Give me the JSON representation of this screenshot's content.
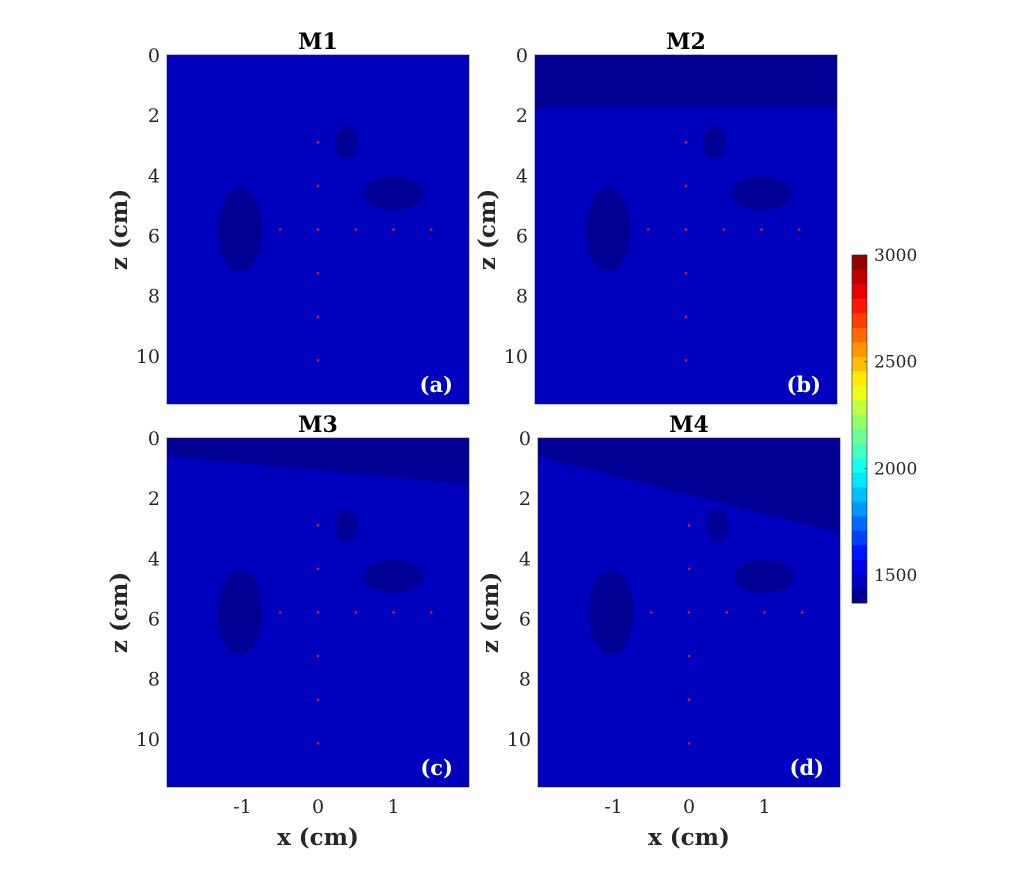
{
  "chart_data": [
    {
      "type": "heatmap",
      "title": "M1",
      "panel_label": "(a)",
      "xlabel": "",
      "ylabel": "z (cm)",
      "xlim": [
        -2,
        2
      ],
      "ylim": [
        0,
        11.6
      ],
      "y_reversed": true,
      "x_ticks": [
        -1,
        0,
        1
      ],
      "y_ticks": [
        0,
        2,
        4,
        6,
        8,
        10
      ],
      "show_x_ticks": false,
      "background_value": 1450,
      "top_layer": null,
      "inclusions": [
        {
          "shape": "ellipse",
          "cx": 0.38,
          "cz": 2.9,
          "rx": 0.15,
          "rz": 0.55,
          "value": 1420
        },
        {
          "shape": "ellipse",
          "cx": 1.0,
          "cz": 4.6,
          "rx": 0.4,
          "rz": 0.55,
          "value": 1420
        },
        {
          "shape": "ellipse",
          "cx": -1.03,
          "cz": 5.8,
          "rx": 0.3,
          "rz": 1.4,
          "value": 1420
        }
      ],
      "point_targets": [
        [
          0,
          2.9
        ],
        [
          0,
          4.35
        ],
        [
          -0.5,
          5.8
        ],
        [
          0,
          5.8
        ],
        [
          0.5,
          5.8
        ],
        [
          1.0,
          5.8
        ],
        [
          1.5,
          5.8
        ],
        [
          0,
          7.25
        ],
        [
          0,
          8.7
        ],
        [
          0,
          10.15
        ]
      ]
    },
    {
      "type": "heatmap",
      "title": "M2",
      "panel_label": "(b)",
      "xlabel": "",
      "ylabel": "z (cm)",
      "xlim": [
        -2,
        2
      ],
      "ylim": [
        0,
        11.6
      ],
      "y_reversed": true,
      "x_ticks": [
        -1,
        0,
        1
      ],
      "y_ticks": [
        0,
        2,
        4,
        6,
        8,
        10
      ],
      "show_x_ticks": false,
      "background_value": 1450,
      "top_layer": {
        "z_left": 1.75,
        "z_right": 1.75,
        "value": 1380
      },
      "inclusions": [
        {
          "shape": "ellipse",
          "cx": 0.38,
          "cz": 2.9,
          "rx": 0.15,
          "rz": 0.55,
          "value": 1420
        },
        {
          "shape": "ellipse",
          "cx": 1.0,
          "cz": 4.6,
          "rx": 0.4,
          "rz": 0.55,
          "value": 1420
        },
        {
          "shape": "ellipse",
          "cx": -1.03,
          "cz": 5.8,
          "rx": 0.3,
          "rz": 1.4,
          "value": 1420
        }
      ],
      "point_targets": [
        [
          0,
          2.9
        ],
        [
          0,
          4.35
        ],
        [
          -0.5,
          5.8
        ],
        [
          0,
          5.8
        ],
        [
          0.5,
          5.8
        ],
        [
          1.0,
          5.8
        ],
        [
          1.5,
          5.8
        ],
        [
          0,
          7.25
        ],
        [
          0,
          8.7
        ],
        [
          0,
          10.15
        ]
      ]
    },
    {
      "type": "heatmap",
      "title": "M3",
      "panel_label": "(c)",
      "xlabel": "x (cm)",
      "ylabel": "z (cm)",
      "xlim": [
        -2,
        2
      ],
      "ylim": [
        0,
        11.6
      ],
      "y_reversed": true,
      "x_ticks": [
        -1,
        0,
        1
      ],
      "y_ticks": [
        0,
        2,
        4,
        6,
        8,
        10
      ],
      "show_x_ticks": true,
      "background_value": 1450,
      "top_layer": {
        "z_left": 0.6,
        "z_right": 1.55,
        "value": 1380
      },
      "inclusions": [
        {
          "shape": "ellipse",
          "cx": 0.38,
          "cz": 2.9,
          "rx": 0.15,
          "rz": 0.55,
          "value": 1420
        },
        {
          "shape": "ellipse",
          "cx": 1.0,
          "cz": 4.6,
          "rx": 0.4,
          "rz": 0.55,
          "value": 1420
        },
        {
          "shape": "ellipse",
          "cx": -1.03,
          "cz": 5.8,
          "rx": 0.3,
          "rz": 1.4,
          "value": 1420
        }
      ],
      "point_targets": [
        [
          0,
          2.9
        ],
        [
          0,
          4.35
        ],
        [
          -0.5,
          5.8
        ],
        [
          0,
          5.8
        ],
        [
          0.5,
          5.8
        ],
        [
          1.0,
          5.8
        ],
        [
          1.5,
          5.8
        ],
        [
          0,
          7.25
        ],
        [
          0,
          8.7
        ],
        [
          0,
          10.15
        ]
      ]
    },
    {
      "type": "heatmap",
      "title": "M4",
      "panel_label": "(d)",
      "xlabel": "x (cm)",
      "ylabel": "z (cm)",
      "xlim": [
        -2,
        2
      ],
      "ylim": [
        0,
        11.6
      ],
      "y_reversed": true,
      "x_ticks": [
        -1,
        0,
        1
      ],
      "y_ticks": [
        0,
        2,
        4,
        6,
        8,
        10
      ],
      "show_x_ticks": true,
      "background_value": 1450,
      "top_layer": {
        "z_left": 0.6,
        "z_right": 3.15,
        "value": 1380
      },
      "inclusions": [
        {
          "shape": "ellipse",
          "cx": 0.38,
          "cz": 2.9,
          "rx": 0.15,
          "rz": 0.55,
          "value": 1420
        },
        {
          "shape": "ellipse",
          "cx": 1.0,
          "cz": 4.6,
          "rx": 0.4,
          "rz": 0.55,
          "value": 1420
        },
        {
          "shape": "ellipse",
          "cx": -1.03,
          "cz": 5.8,
          "rx": 0.3,
          "rz": 1.4,
          "value": 1420
        }
      ],
      "point_targets": [
        [
          0,
          2.9
        ],
        [
          0,
          4.35
        ],
        [
          -0.5,
          5.8
        ],
        [
          0,
          5.8
        ],
        [
          0.5,
          5.8
        ],
        [
          1.0,
          5.8
        ],
        [
          1.5,
          5.8
        ],
        [
          0,
          7.25
        ],
        [
          0,
          8.7
        ],
        [
          0,
          10.15
        ]
      ]
    }
  ],
  "colorbar": {
    "colormap": "jet",
    "range": [
      1370,
      3000
    ],
    "ticks": [
      1500,
      2000,
      2500,
      3000
    ],
    "levels": 24
  },
  "colors": {
    "point_target": "#d02020"
  }
}
